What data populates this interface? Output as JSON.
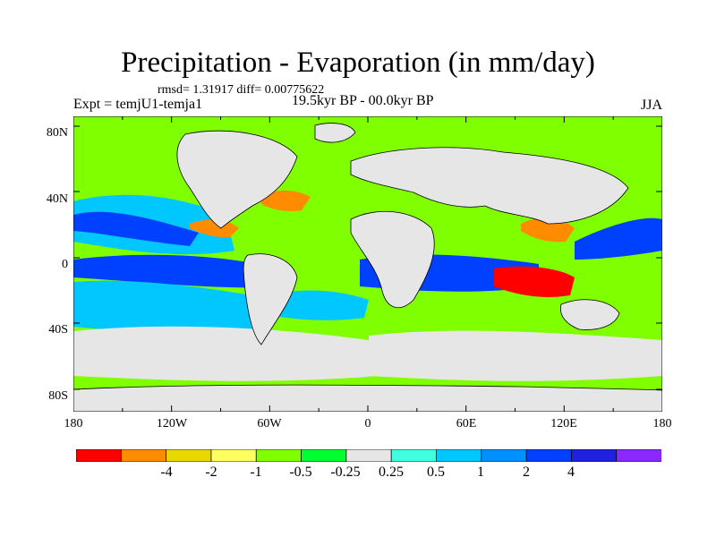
{
  "title": "Precipitation - Evaporation (in mm/day)",
  "stats": "rmsd= 1.31917 diff= 0.00775622",
  "experiment": "Expt = temjU1-temja1",
  "period": "19.5kyr BP - 00.0kyr BP",
  "season": "JJA",
  "lat_labels": [
    "80N",
    "40N",
    "0",
    "40S",
    "80S"
  ],
  "lon_labels": [
    "180",
    "120W",
    "60W",
    "0",
    "60E",
    "120E",
    "180"
  ],
  "colorbar": {
    "colors": [
      "#ff0000",
      "#ff8c00",
      "#e8d800",
      "#ffff60",
      "#7fff00",
      "#00ff30",
      "#e6e6e6",
      "#40ffe0",
      "#00c8ff",
      "#0090ff",
      "#0040ff",
      "#2020e0",
      "#8a28ff"
    ],
    "labels": [
      "-4",
      "-2",
      "-1",
      "-0.5",
      "-0.25",
      "0.25",
      "0.5",
      "1",
      "2",
      "4"
    ]
  },
  "map_colors": {
    "land_nodata": "#e6e6e6",
    "coast": "#000000"
  }
}
